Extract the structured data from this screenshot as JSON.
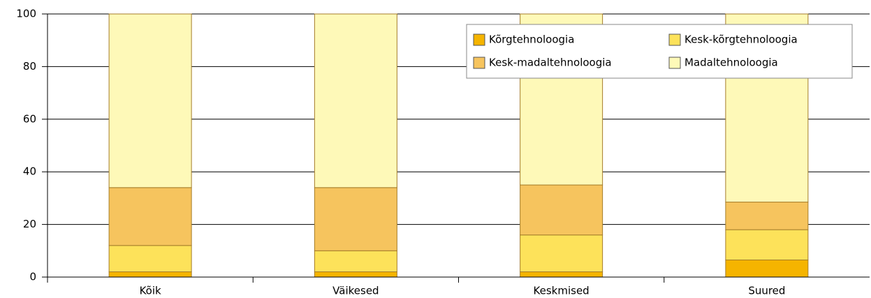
{
  "chart_data": {
    "type": "bar",
    "stacked": true,
    "categories": [
      "Kõik",
      "Väikesed",
      "Keskmised",
      "Suured"
    ],
    "series": [
      {
        "name": "Kõrgtehnoloogia",
        "color": "#f5b400",
        "values": [
          2,
          2,
          2,
          6.5
        ]
      },
      {
        "name": "Kesk-kõrgtehnoloogia",
        "color": "#fde25a",
        "values": [
          10,
          8,
          14,
          11.5
        ]
      },
      {
        "name": "Kesk-madaltehnoloogia",
        "color": "#f6c45e",
        "values": [
          22,
          24,
          19,
          10.5
        ]
      },
      {
        "name": "Madaltehnoloogia",
        "color": "#fef9b8",
        "values": [
          66,
          66,
          65,
          71.5
        ]
      }
    ],
    "ylim": [
      0,
      100
    ],
    "yticks": [
      0,
      20,
      40,
      60,
      80,
      100
    ],
    "grid": true,
    "legend": "upper right"
  }
}
